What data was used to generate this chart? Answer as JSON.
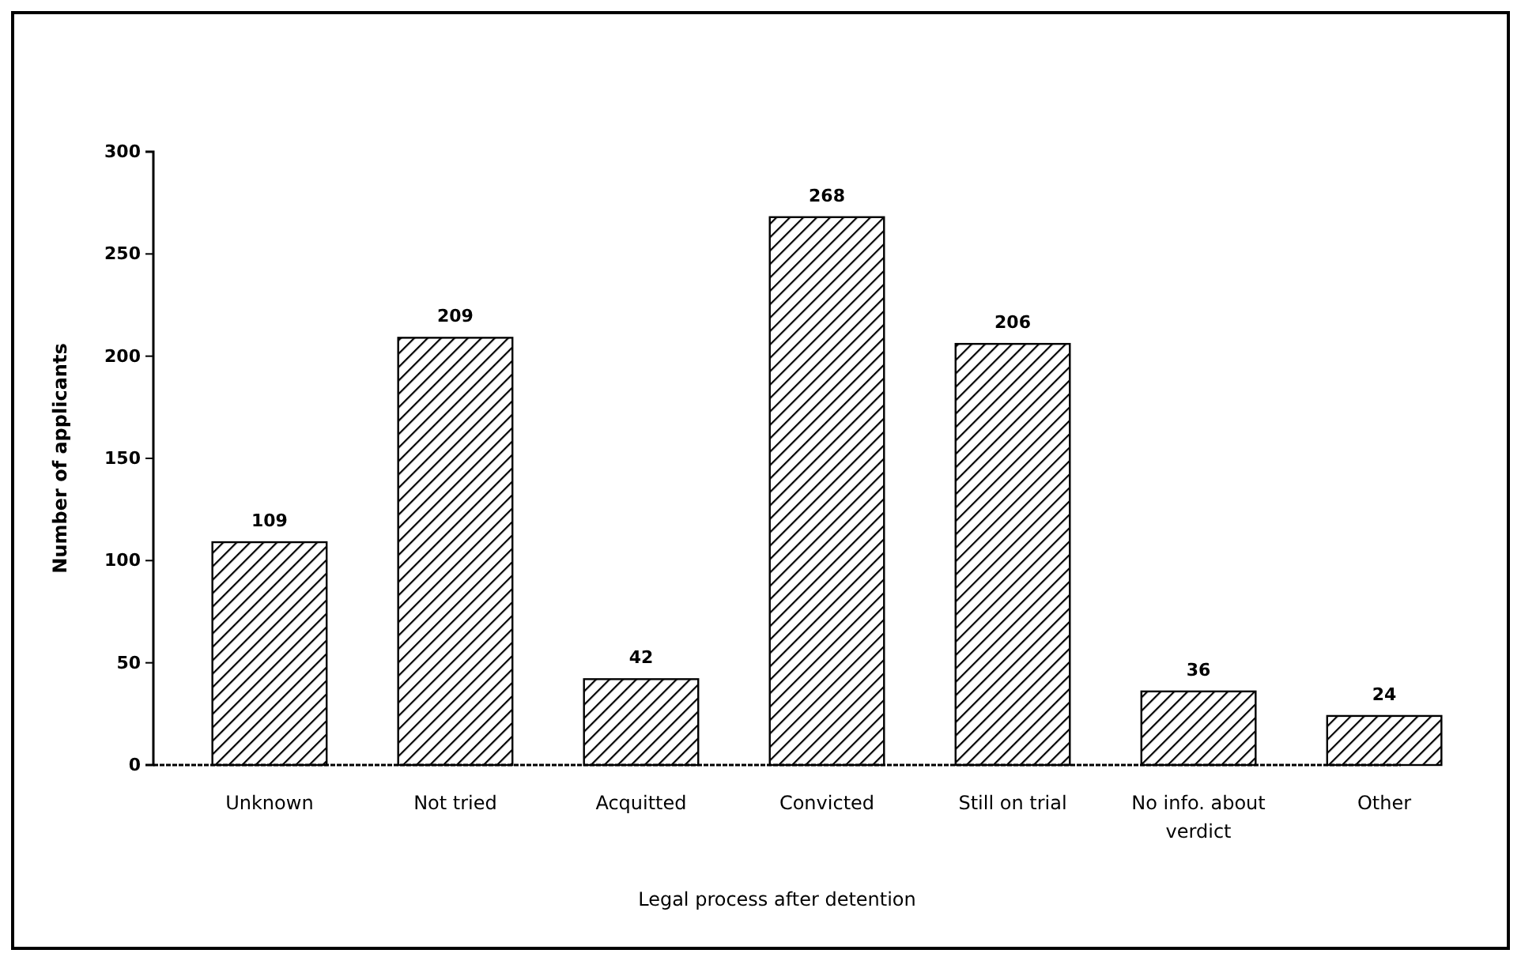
{
  "chart_data": {
    "type": "bar",
    "xlabel": "Legal process after detention",
    "ylabel": "Number of applicants",
    "categories": [
      "Unknown",
      "Not tried",
      "Acquitted",
      "Convicted",
      "Still on trial",
      "No info. about verdict",
      "Other"
    ],
    "values": [
      109,
      209,
      42,
      268,
      206,
      36,
      24
    ],
    "color": "#000000",
    "ylim": [
      0,
      300
    ],
    "yticks": [
      0,
      50,
      100,
      150,
      200,
      250,
      300
    ],
    "data_labels": true
  }
}
